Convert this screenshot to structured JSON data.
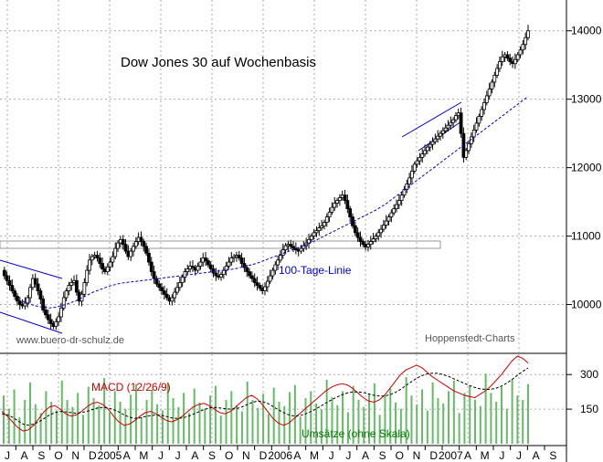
{
  "chart_data": [
    {
      "type": "candlestick",
      "title": "Dow Jones 30 auf Wochenbasis",
      "source_left": "www.buero-dr-schulz.de",
      "source_right": "Hoppenstedt-Charts",
      "ma_label": "100-Tage-Linie",
      "ylim": [
        9300,
        14450
      ],
      "y_ticks": [
        10000,
        11000,
        12000,
        13000,
        14000
      ],
      "grid": true,
      "ohlc_weekly_close": [
        10500,
        10420,
        10350,
        10280,
        10200,
        10120,
        10050,
        10000,
        9980,
        10020,
        10100,
        10250,
        10380,
        10300,
        10200,
        10080,
        9920,
        9850,
        9780,
        9720,
        9680,
        9750,
        9820,
        9950,
        10100,
        10200,
        10280,
        10320,
        10350,
        10180,
        10050,
        10150,
        10320,
        10500,
        10650,
        10700,
        10720,
        10680,
        10600,
        10520,
        10480,
        10550,
        10620,
        10700,
        10820,
        10900,
        10950,
        10880,
        10780,
        10700,
        10780,
        10850,
        10920,
        10980,
        10920,
        10850,
        10750,
        10620,
        10480,
        10380,
        10300,
        10250,
        10200,
        10150,
        10100,
        10050,
        10100,
        10180,
        10250,
        10320,
        10400,
        10480,
        10520,
        10560,
        10540,
        10500,
        10560,
        10620,
        10680,
        10640,
        10580,
        10520,
        10460,
        10420,
        10400,
        10440,
        10500,
        10560,
        10620,
        10680,
        10700,
        10720,
        10680,
        10600,
        10540,
        10480,
        10420,
        10380,
        10320,
        10280,
        10240,
        10200,
        10260,
        10340,
        10420,
        10500,
        10580,
        10650,
        10720,
        10800,
        10860,
        10880,
        10850,
        10820,
        10800,
        10780,
        10820,
        10860,
        10900,
        10950,
        11000,
        11050,
        11080,
        11120,
        11150,
        11200,
        11280,
        11350,
        11420,
        11480,
        11520,
        11560,
        11600,
        11520,
        11400,
        11280,
        11150,
        11050,
        10980,
        10920,
        10880,
        10840,
        10880,
        10920,
        10960,
        11000,
        11050,
        11100,
        11160,
        11220,
        11280,
        11340,
        11400,
        11460,
        11520,
        11600,
        11680,
        11760,
        11850,
        11950,
        12050,
        12100,
        12150,
        12200,
        12250,
        12300,
        12340,
        12380,
        12420,
        12460,
        12500,
        12540,
        12580,
        12620,
        12660,
        12700,
        12760,
        12800,
        12500,
        12150,
        12250,
        12350,
        12450,
        12550,
        12650,
        12750,
        12850,
        12950,
        13050,
        13150,
        13250,
        13350,
        13450,
        13550,
        13620,
        13650,
        13600,
        13550,
        13520,
        13580,
        13650,
        13720,
        13800,
        13900,
        14000
      ],
      "ma_100": [
        10050,
        10020,
        9990,
        9970,
        9960,
        9950,
        9960,
        9980,
        10000,
        10030,
        10060,
        10100,
        10140,
        10180,
        10210,
        10240,
        10270,
        10290,
        10310,
        10320,
        10330,
        10340,
        10350,
        10360,
        10370,
        10380,
        10390,
        10400,
        10410,
        10420,
        10430,
        10440,
        10450,
        10460,
        10470,
        10480,
        10490,
        10500,
        10510,
        10520,
        10540,
        10560,
        10580,
        10600,
        10630,
        10660,
        10690,
        10720,
        10750,
        10780,
        10810,
        10840,
        10870,
        10900,
        10940,
        10980,
        11020,
        11060,
        11100,
        11140,
        11180,
        11220,
        11260,
        11300,
        11340,
        11380,
        11430,
        11480,
        11540,
        11600,
        11660,
        11720,
        11780,
        11840,
        11900,
        11960,
        12020,
        12080,
        12140,
        12200,
        12260,
        12320,
        12380,
        12440,
        12500,
        12560,
        12620,
        12680,
        12740,
        12800,
        12860,
        12920,
        12980,
        13040
      ],
      "macd": {
        "label": "MACD (12/26/9)",
        "ylim": [
          0,
          380
        ],
        "y_ticks": [
          150,
          300
        ],
        "macd_series": [
          140,
          120,
          95,
          70,
          55,
          60,
          80,
          110,
          140,
          160,
          165,
          150,
          130,
          120,
          125,
          140,
          160,
          175,
          180,
          170,
          150,
          120,
          95,
          80,
          85,
          100,
          120,
          135,
          140,
          130,
          115,
          100,
          95,
          105,
          120,
          140,
          160,
          170,
          175,
          165,
          150,
          135,
          130,
          140,
          160,
          180,
          200,
          210,
          195,
          170,
          140,
          110,
          90,
          80,
          90,
          110,
          130,
          150,
          170,
          190,
          210,
          230,
          245,
          255,
          260,
          255,
          240,
          220,
          200,
          185,
          180,
          190,
          210,
          240,
          270,
          300,
          320,
          330,
          340,
          330,
          310,
          290,
          275,
          260,
          245,
          230,
          220,
          210,
          205,
          200,
          215,
          230,
          250,
          275,
          300,
          330,
          360,
          380,
          370,
          350
        ],
        "signal_series": [
          130,
          125,
          115,
          100,
          85,
          80,
          85,
          95,
          110,
          125,
          135,
          140,
          138,
          135,
          132,
          135,
          140,
          148,
          155,
          158,
          155,
          148,
          138,
          125,
          115,
          110,
          112,
          118,
          122,
          125,
          123,
          118,
          112,
          110,
          112,
          118,
          128,
          138,
          148,
          155,
          157,
          155,
          152,
          150,
          152,
          158,
          168,
          178,
          185,
          183,
          175,
          162,
          148,
          135,
          125,
          120,
          122,
          128,
          138,
          150,
          163,
          177,
          190,
          202,
          212,
          220,
          225,
          225,
          222,
          216,
          210,
          207,
          207,
          212,
          222,
          236,
          252,
          268,
          283,
          295,
          303,
          306,
          305,
          300,
          292,
          282,
          272,
          262,
          252,
          244,
          238,
          235,
          236,
          241,
          250,
          263,
          279,
          297,
          314,
          328
        ]
      },
      "volume_label": "Umsätze (ohne Skala)",
      "volume_bars": [
        0.55,
        0.4,
        0.62,
        0.3,
        0.5,
        0.7,
        0.45,
        0.35,
        0.6,
        0.48,
        0.38,
        0.72,
        0.5,
        0.42,
        0.58,
        0.33,
        0.65,
        0.52,
        0.44,
        0.75,
        0.36,
        0.6,
        0.48,
        0.4,
        0.56,
        0.68,
        0.3,
        0.5,
        0.62,
        0.45,
        0.38,
        0.7,
        0.52,
        0.42,
        0.58,
        0.35,
        0.63,
        0.47,
        0.4,
        0.55,
        0.66,
        0.32,
        0.5,
        0.6,
        0.44,
        0.37,
        0.71,
        0.5,
        0.41,
        0.57,
        0.34,
        0.64,
        0.48,
        0.43,
        0.59,
        0.67,
        0.31,
        0.52,
        0.6,
        0.46,
        0.39,
        0.73,
        0.53,
        0.44,
        0.6,
        0.36,
        0.66,
        0.5,
        0.42,
        0.57,
        0.69,
        0.33,
        0.55,
        0.63,
        0.47,
        0.4,
        0.76,
        0.55,
        0.45,
        0.62,
        0.38,
        0.7,
        0.52,
        0.46,
        0.6,
        0.72,
        0.35,
        0.58,
        0.66,
        0.5,
        0.43,
        0.8,
        0.58,
        0.48,
        0.65,
        0.4,
        0.74,
        0.55,
        0.5,
        0.68
      ],
      "x_month_labels": [
        "J",
        "A",
        "S",
        "O",
        "N",
        "D",
        "2005",
        "A",
        "M",
        "J",
        "J",
        "A",
        "S",
        "O",
        "N",
        "D",
        "2006",
        "A",
        "M",
        "J",
        "J",
        "A",
        "S",
        "O",
        "N",
        "D",
        "2007",
        "A",
        "M",
        "J",
        "J",
        "A",
        "S"
      ]
    }
  ]
}
